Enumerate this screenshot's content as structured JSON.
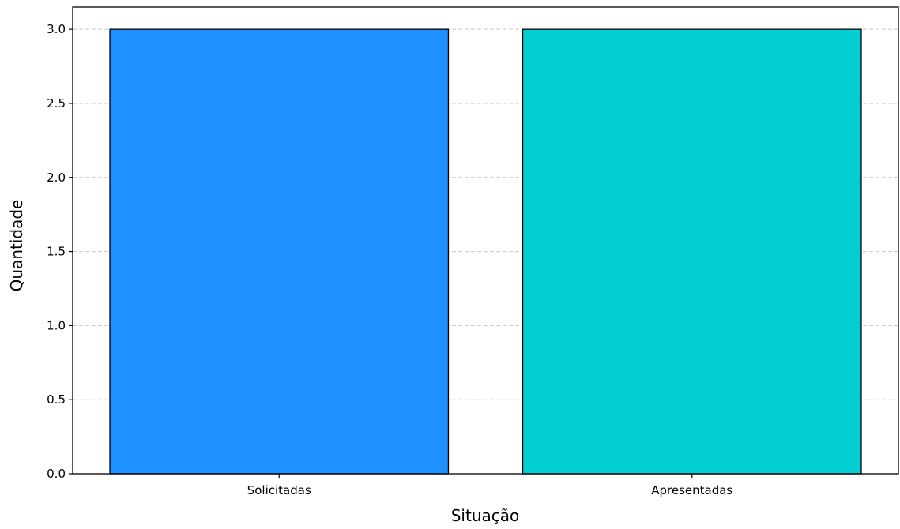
{
  "chart_data": {
    "type": "bar",
    "categories": [
      "Solicitadas",
      "Apresentadas"
    ],
    "values": [
      3,
      3
    ],
    "colors": [
      "#1e90ff",
      "#00ced1"
    ],
    "bar_edge_color": "#000000",
    "title": "",
    "xlabel": "Situação",
    "ylabel": "Quantidade",
    "ylim": [
      0,
      3.15
    ],
    "yticks": [
      "0.0",
      "0.5",
      "1.0",
      "1.5",
      "2.0",
      "2.5",
      "3.0"
    ],
    "grid": "y-dashed",
    "legend": "none"
  }
}
